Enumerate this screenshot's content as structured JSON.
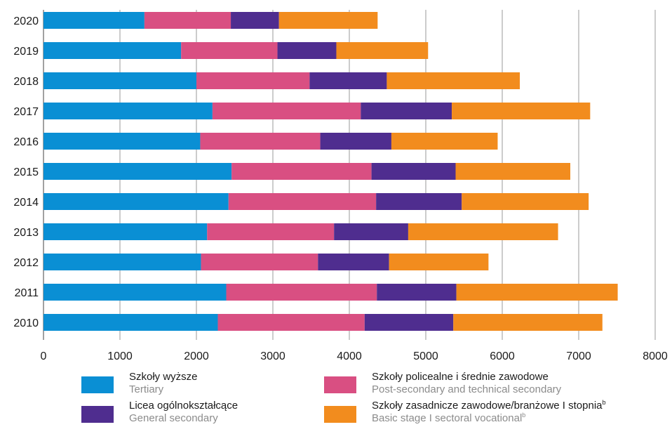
{
  "chart_data": {
    "type": "bar",
    "orientation": "horizontal",
    "stacked": true,
    "categories": [
      "2020",
      "2019",
      "2018",
      "2017",
      "2016",
      "2015",
      "2014",
      "2013",
      "2012",
      "2011",
      "2010"
    ],
    "series": [
      {
        "name": "Szkoły wyższe",
        "name_en": "Tertiary",
        "color": "#0a8fd4",
        "values": [
          1320,
          1800,
          2000,
          2210,
          2050,
          2460,
          2420,
          2140,
          2060,
          2390,
          2280
        ]
      },
      {
        "name": "Szkoły policealne i średnie zawodowe",
        "name_en": "Post-secondary and technical secondary",
        "color": "#d94f82",
        "values": [
          1130,
          1260,
          1480,
          1940,
          1570,
          1830,
          1930,
          1660,
          1530,
          1970,
          1920
        ]
      },
      {
        "name": "Licea ogólnokształcące",
        "name_en": "General secondary",
        "color": "#4f2d8f",
        "values": [
          630,
          770,
          1010,
          1190,
          930,
          1100,
          1120,
          970,
          930,
          1040,
          1160
        ]
      },
      {
        "name": "Szkoły zasadnicze zawodowe/branżowe I stopnia",
        "name_en": "Basic stage I sectoral vocational",
        "sup": "b",
        "color": "#f28c1e",
        "values": [
          1290,
          1200,
          1740,
          1810,
          1390,
          1500,
          1660,
          1960,
          1300,
          2110,
          1950
        ]
      }
    ],
    "xlim": [
      0,
      8000
    ],
    "xticks": [
      "0",
      "1000",
      "2000",
      "3000",
      "4000",
      "5000",
      "6000",
      "7000",
      "8000"
    ],
    "grid": "vertical",
    "legend": "bottom"
  }
}
